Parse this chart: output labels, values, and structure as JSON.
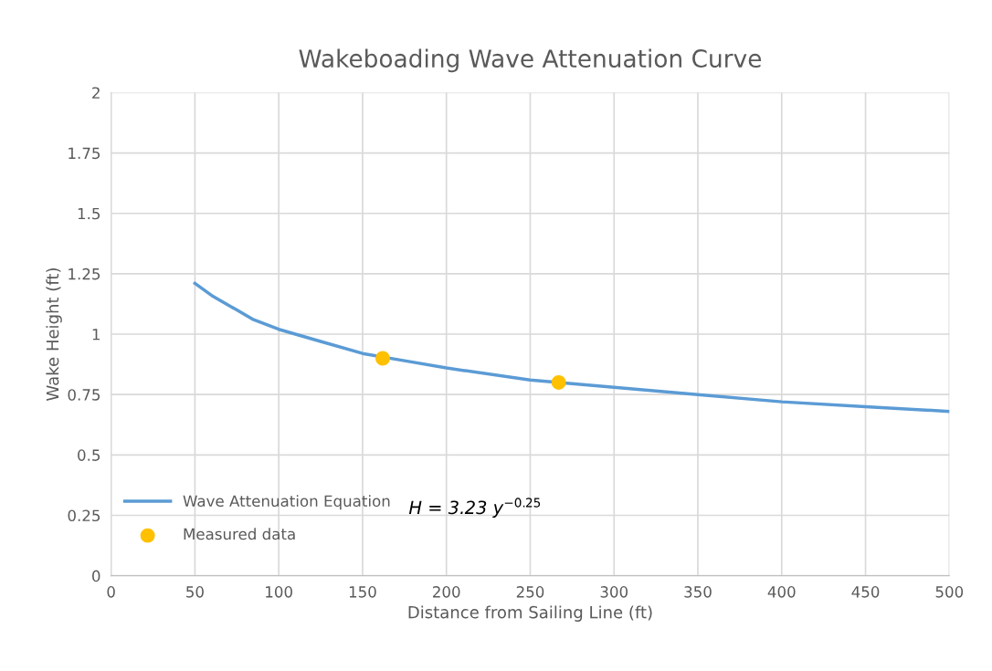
{
  "chart_data": {
    "type": "line",
    "title": "Wakeboading Wave Attenuation Curve",
    "xlabel": "Distance from Sailing Line (ft)",
    "ylabel": "Wake Height (ft)",
    "series": [
      {
        "name": "Wave Attenuation Equation",
        "color": "#5b9bd5",
        "marker": "none",
        "x": [
          50,
          60,
          75,
          85,
          100,
          125,
          150,
          175,
          200,
          250,
          300,
          350,
          400,
          450,
          500
        ],
        "values": [
          1.21,
          1.16,
          1.1,
          1.06,
          1.02,
          0.97,
          0.92,
          0.89,
          0.86,
          0.81,
          0.78,
          0.75,
          0.72,
          0.7,
          0.68
        ]
      },
      {
        "name": "Measured data",
        "type": "scatter",
        "color": "#ffc000",
        "marker": "circle",
        "x": [
          162,
          267
        ],
        "values": [
          0.9,
          0.8
        ]
      }
    ],
    "xlim": [
      0,
      500
    ],
    "xticks": [
      0,
      50,
      100,
      150,
      200,
      250,
      300,
      350,
      400,
      450,
      500
    ],
    "ylim": [
      0,
      2
    ],
    "yticks": [
      0,
      0.25,
      0.5,
      0.75,
      1,
      1.25,
      1.5,
      1.75,
      2
    ],
    "annotations": [
      "H = 3.23 y$^{−0.25}$"
    ],
    "grid": true,
    "legend": "bottom left"
  }
}
